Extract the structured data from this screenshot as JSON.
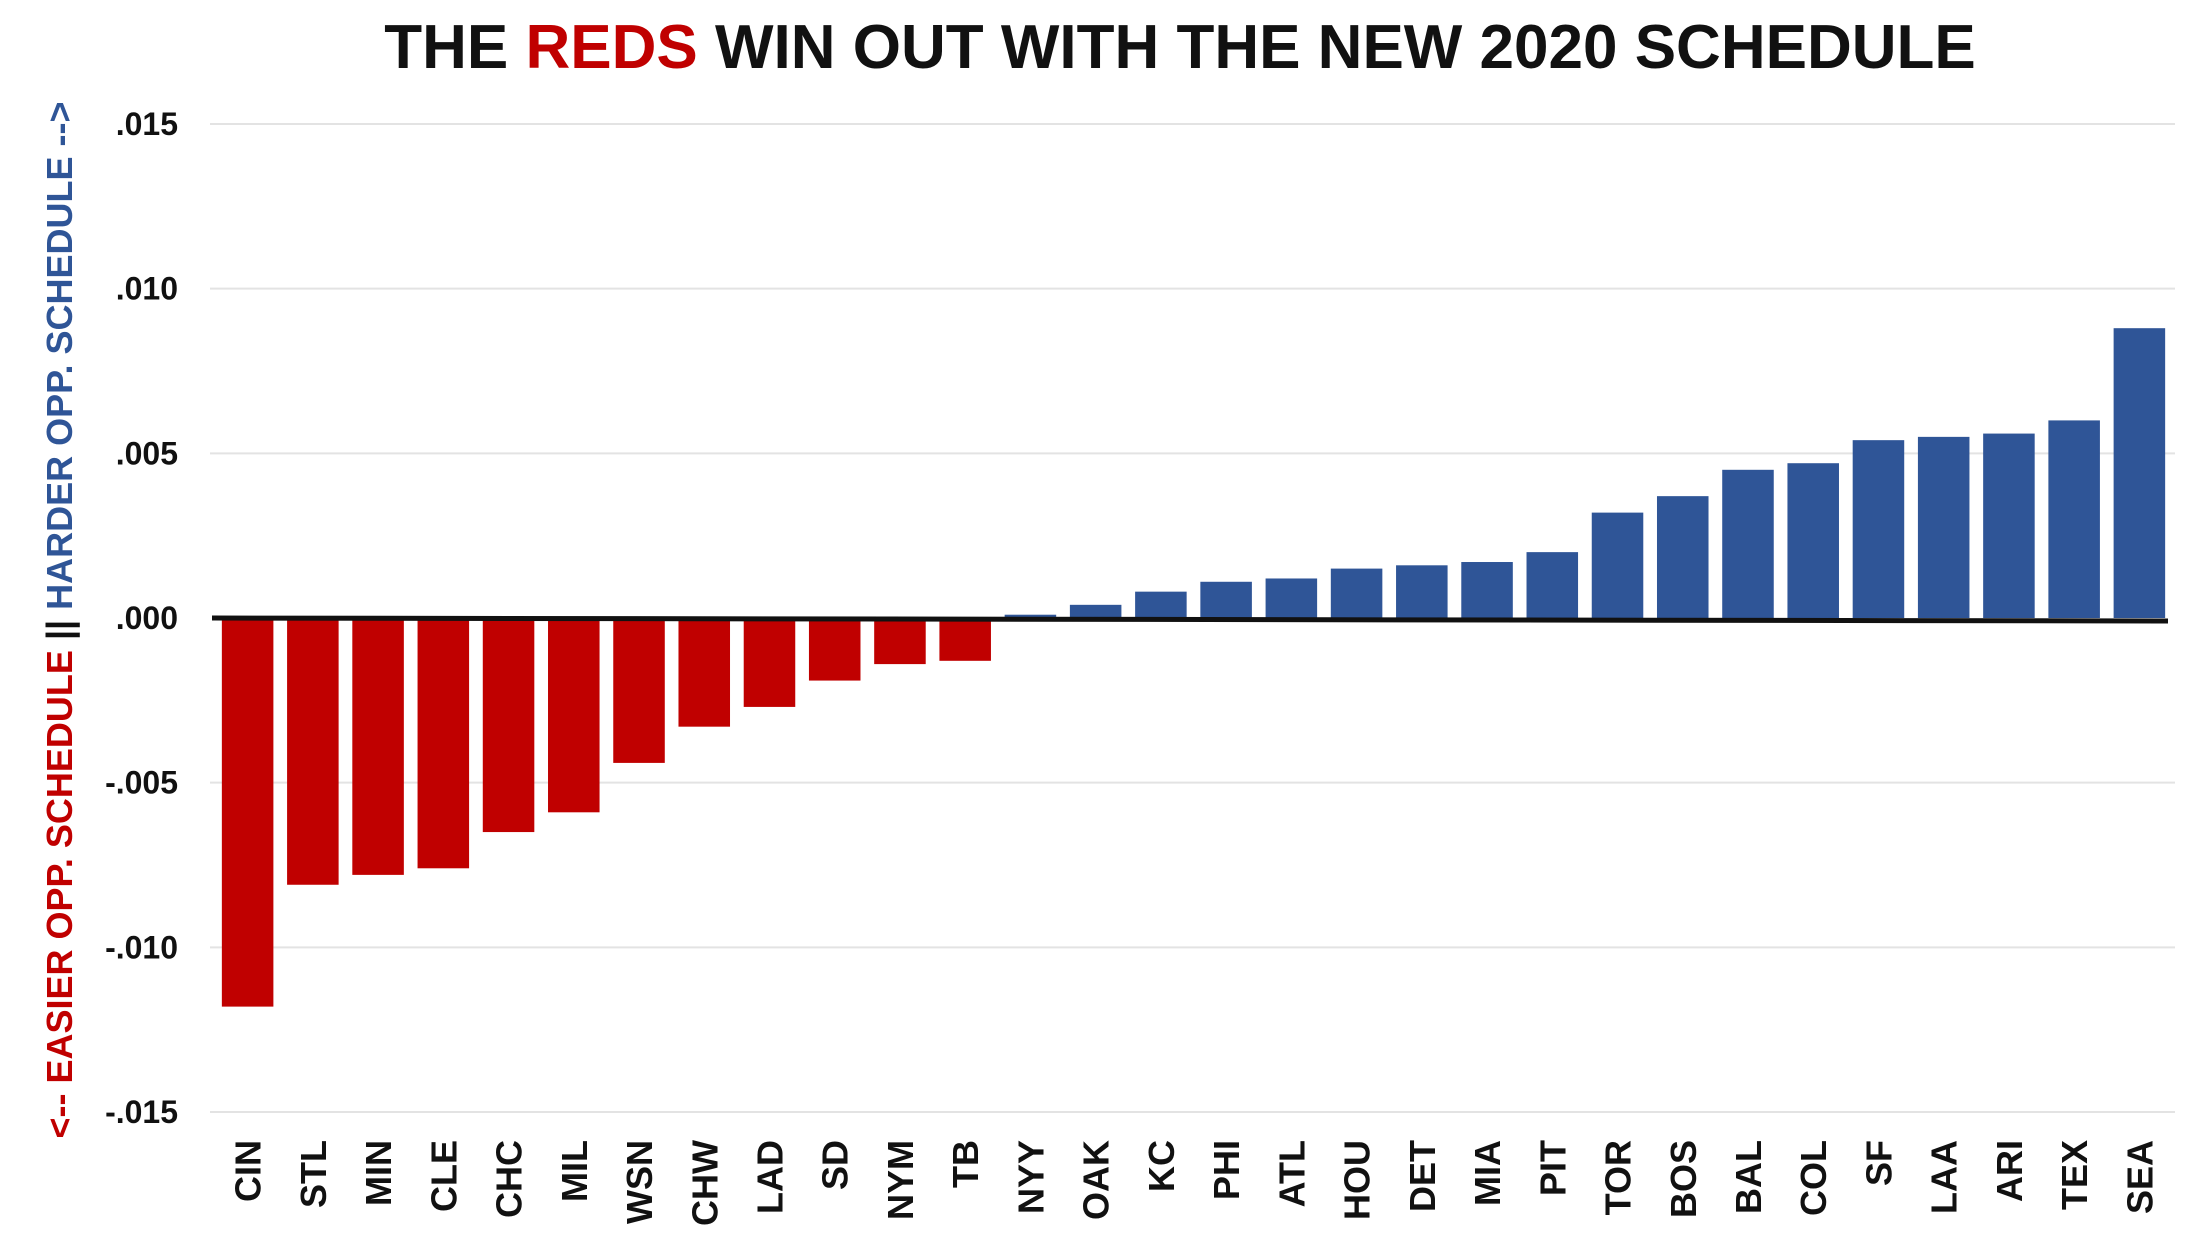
{
  "chart_data": {
    "type": "bar",
    "title_parts": [
      {
        "text": "THE ",
        "color": "#111111"
      },
      {
        "text": "REDS",
        "color": "#c00000"
      },
      {
        "text": " WIN OUT WITH THE NEW 2020 SCHEDULE",
        "color": "#111111"
      }
    ],
    "ylabel_parts": [
      {
        "text": "<-- EASIER OPP. SCHEDULE",
        "color": "#c00000"
      },
      {
        "text": " || ",
        "color": "#111111"
      },
      {
        "text": "HARDER OPP. SCHEDULE -->",
        "color": "#2f5597"
      }
    ],
    "xlabel": "",
    "ylim": [
      -0.015,
      0.015
    ],
    "yticks": [
      0.015,
      0.01,
      0.005,
      0.0,
      -0.005,
      -0.01,
      -0.015
    ],
    "ytick_labels": [
      ".015",
      ".010",
      ".005",
      ".000",
      "-.005",
      "-.010",
      "-.015"
    ],
    "grid": true,
    "legend": "none",
    "colors": {
      "negative": "#c00000",
      "positive": "#2f5597",
      "grid": "#e3e3e3",
      "zero_line": "#111111",
      "text": "#111111"
    },
    "categories": [
      "CIN",
      "STL",
      "MIN",
      "CLE",
      "CHC",
      "MIL",
      "WSN",
      "CHW",
      "LAD",
      "SD",
      "NYM",
      "TB",
      "NYY",
      "OAK",
      "KC",
      "PHI",
      "ATL",
      "HOU",
      "DET",
      "MIA",
      "PIT",
      "TOR",
      "BOS",
      "BAL",
      "COL",
      "SF",
      "LAA",
      "ARI",
      "TEX",
      "SEA"
    ],
    "values": [
      -0.0118,
      -0.0081,
      -0.0078,
      -0.0076,
      -0.0065,
      -0.0059,
      -0.0044,
      -0.0033,
      -0.0027,
      -0.0019,
      -0.0014,
      -0.0013,
      0.0001,
      0.0004,
      0.0008,
      0.0011,
      0.0012,
      0.0015,
      0.0016,
      0.0017,
      0.002,
      0.0032,
      0.0037,
      0.0045,
      0.0047,
      0.0054,
      0.0055,
      0.0056,
      0.006,
      0.0088
    ]
  }
}
